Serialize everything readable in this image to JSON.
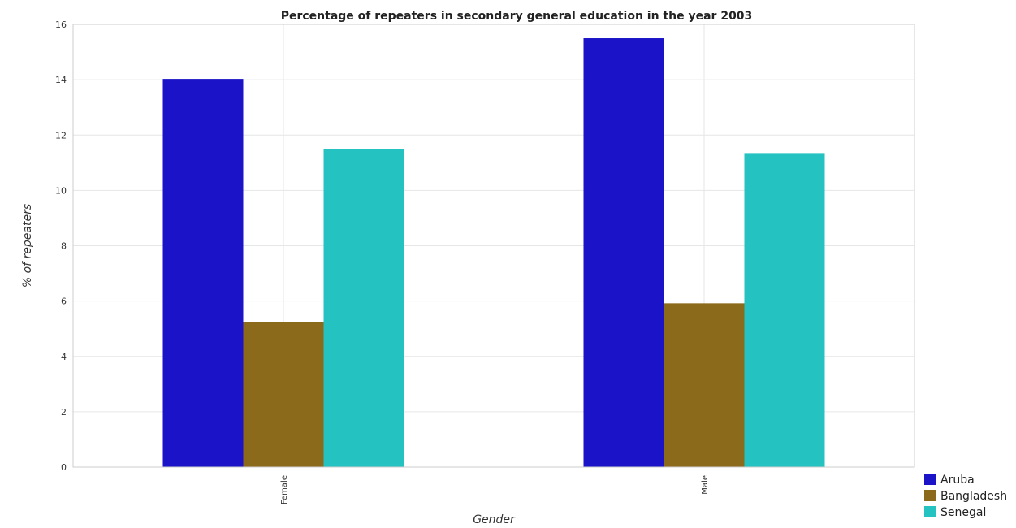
{
  "chart_data": {
    "type": "bar",
    "title": "Percentage of repeaters in secondary general education in the year 2003",
    "xlabel": "Gender",
    "ylabel": "% of repeaters",
    "categories": [
      "Female",
      "Male"
    ],
    "ylim": [
      0,
      16
    ],
    "yticks": [
      0,
      2,
      4,
      6,
      8,
      10,
      12,
      14,
      16
    ],
    "grid": true,
    "legend_position": "bottom-right",
    "series": [
      {
        "name": "Aruba",
        "color": "#1a13c7",
        "values": [
          14.03,
          15.5
        ]
      },
      {
        "name": "Bangladesh",
        "color": "#8c6a1c",
        "values": [
          5.24,
          5.92
        ]
      },
      {
        "name": "Senegal",
        "color": "#25c2c2",
        "values": [
          11.49,
          11.35
        ]
      }
    ]
  }
}
